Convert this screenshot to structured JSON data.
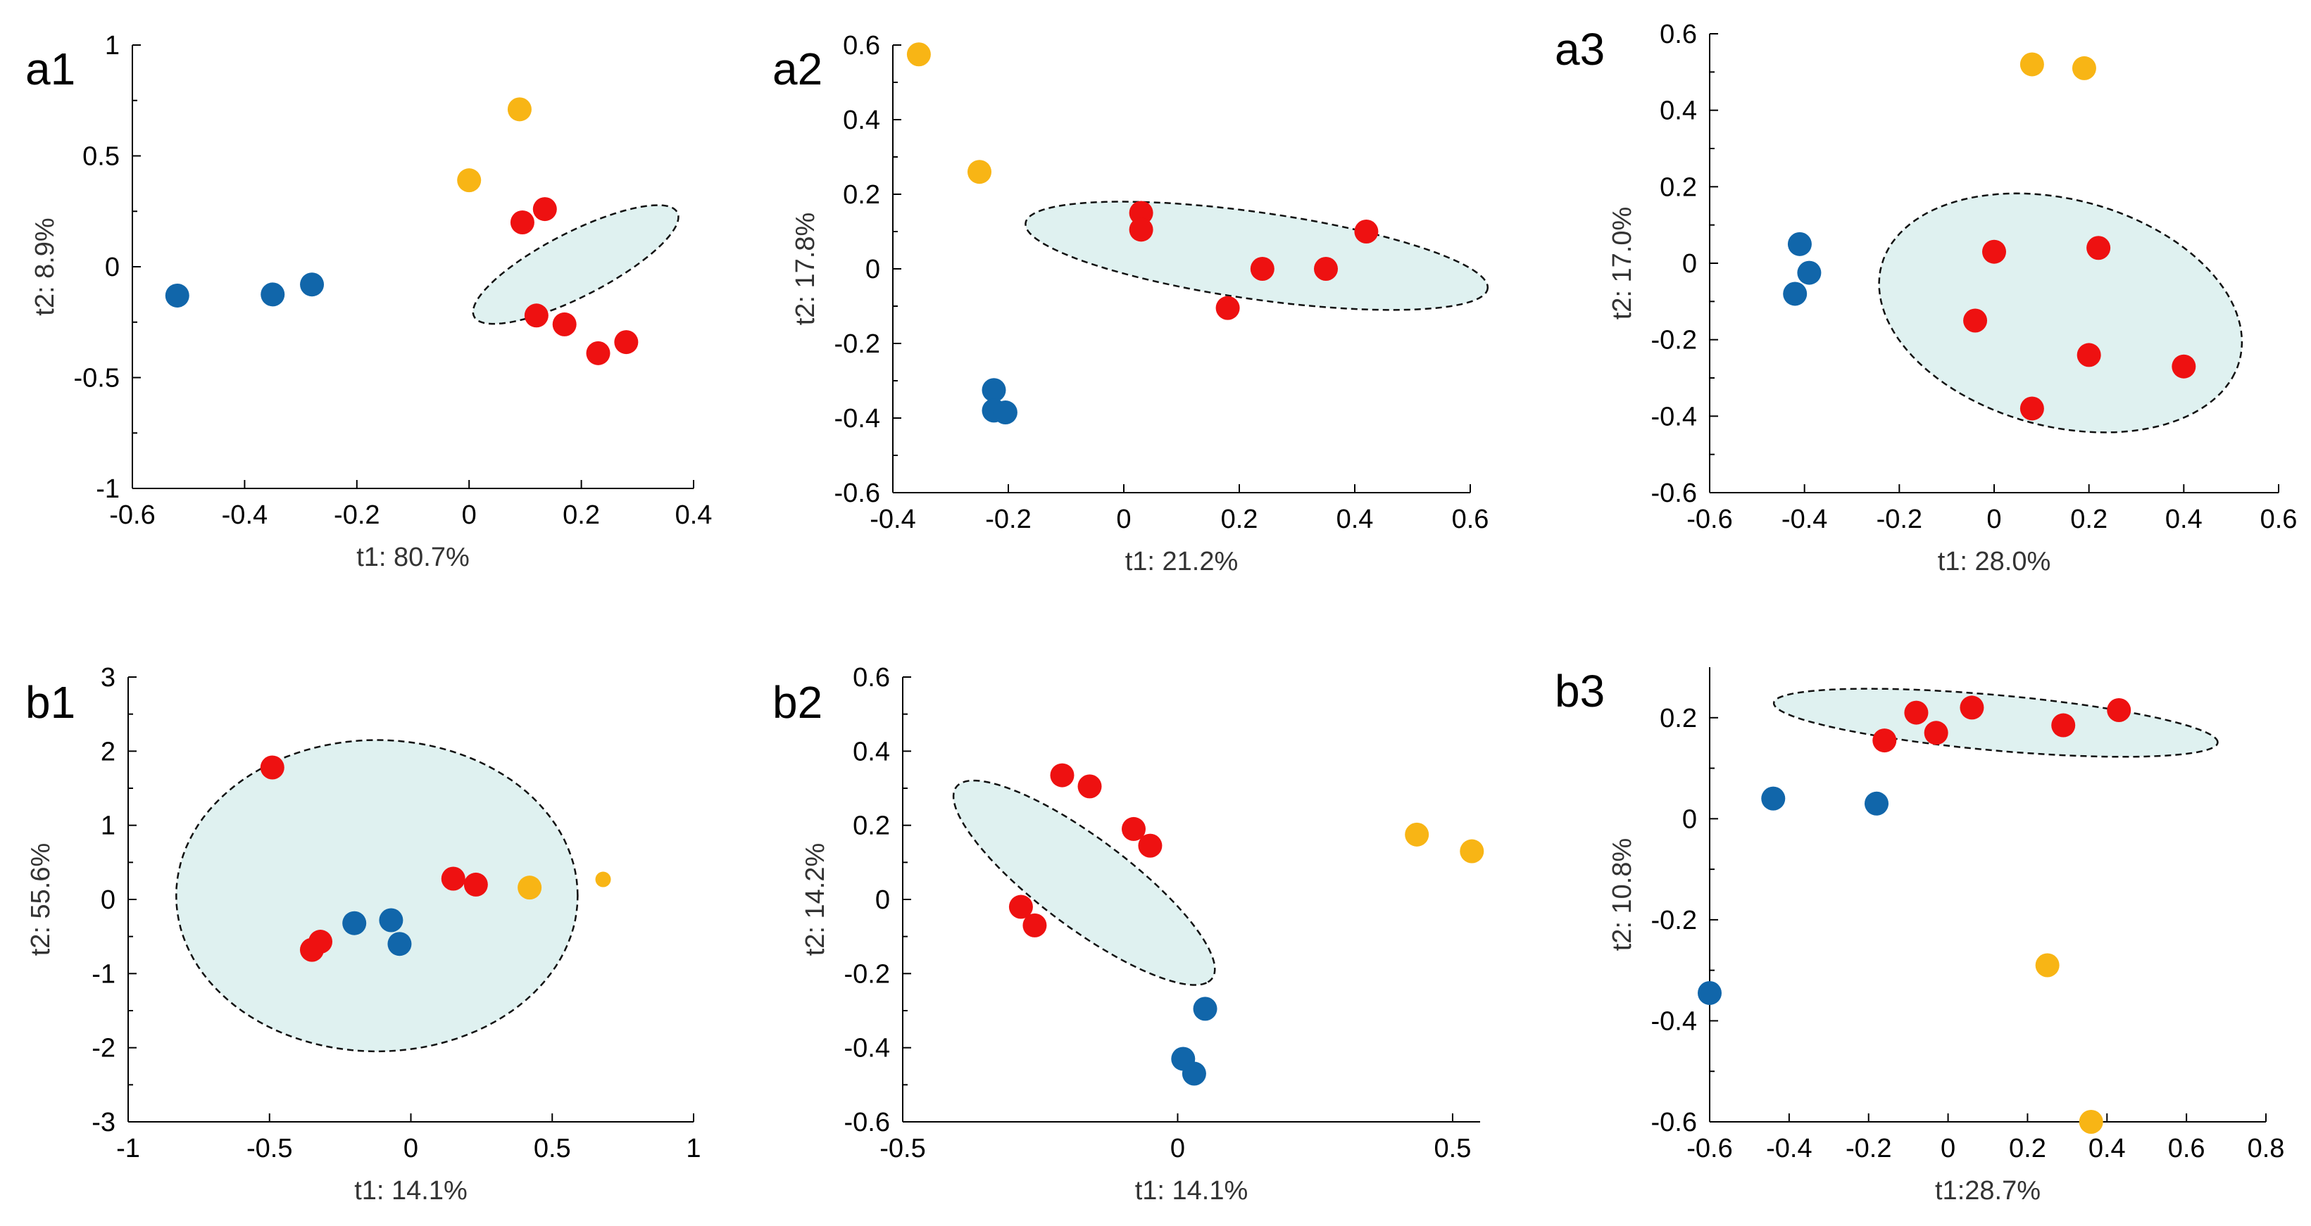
{
  "colors": {
    "red": "#ee1111",
    "blue": "#1166aa",
    "orange": "#f8b515",
    "ellipse_fill": "#dff1f0"
  },
  "chart_data": [
    {
      "id": "a1",
      "type": "scatter",
      "label": "a1",
      "xlabel": "t1: 80.7%",
      "ylabel": "t2: 8.9%",
      "xlim": [
        -0.6,
        0.4
      ],
      "ylim": [
        -1,
        1
      ],
      "xticks": [
        -0.6,
        -0.4,
        -0.2,
        0,
        0.2,
        0.4
      ],
      "xtick_labels": [
        "-0.6",
        "-0.4",
        "-0.2",
        "0",
        "0.2",
        "0.4"
      ],
      "yticks": [
        -1,
        -0.5,
        0,
        0.5,
        1
      ],
      "ytick_labels": [
        "-1",
        "-0.5",
        "0",
        "0.5",
        "1"
      ],
      "ellipse": {
        "cx": 0.19,
        "cy": 0.01,
        "rx": 0.31,
        "ry": 0.095,
        "angle_deg": 58
      },
      "series": [
        {
          "name": "red",
          "color": "#ee1111",
          "points": [
            [
              0.095,
              0.2
            ],
            [
              0.135,
              0.26
            ],
            [
              0.12,
              -0.22
            ],
            [
              0.17,
              -0.26
            ],
            [
              0.23,
              -0.39
            ],
            [
              0.28,
              -0.34
            ]
          ]
        },
        {
          "name": "blue",
          "color": "#1166aa",
          "points": [
            [
              -0.52,
              -0.13
            ],
            [
              -0.35,
              -0.125
            ],
            [
              -0.28,
              -0.08
            ]
          ]
        },
        {
          "name": "orange",
          "color": "#f8b515",
          "points": [
            [
              0.09,
              0.71
            ],
            [
              0.0,
              0.39
            ]
          ]
        }
      ]
    },
    {
      "id": "a2",
      "type": "scatter",
      "label": "a2",
      "xlabel": "t1: 21.2%",
      "ylabel": "t2: 17.8%",
      "xlim": [
        -0.4,
        0.6
      ],
      "ylim": [
        -0.6,
        0.6
      ],
      "xticks": [
        -0.4,
        -0.2,
        0,
        0.2,
        0.4,
        0.6
      ],
      "xtick_labels": [
        "-0.4",
        "-0.2",
        "0",
        "0.2",
        "0.4",
        "0.6"
      ],
      "yticks": [
        -0.6,
        -0.4,
        -0.2,
        0,
        0.2,
        0.4,
        0.6
      ],
      "ytick_labels": [
        "-0.6",
        "-0.4",
        "-0.2",
        "0",
        "0.2",
        "0.4",
        "0.6"
      ],
      "ellipse": {
        "cx": 0.23,
        "cy": 0.035,
        "rx": 0.41,
        "ry": 0.115,
        "angle_deg": -13
      },
      "series": [
        {
          "name": "red",
          "color": "#ee1111",
          "points": [
            [
              0.03,
              0.15
            ],
            [
              0.03,
              0.105
            ],
            [
              0.24,
              0.0
            ],
            [
              0.35,
              0.0
            ],
            [
              0.42,
              0.1
            ],
            [
              0.18,
              -0.105
            ]
          ]
        },
        {
          "name": "blue",
          "color": "#1166aa",
          "points": [
            [
              -0.225,
              -0.325
            ],
            [
              -0.225,
              -0.38
            ],
            [
              -0.205,
              -0.385
            ]
          ]
        },
        {
          "name": "orange",
          "color": "#f8b515",
          "points": [
            [
              -0.355,
              0.575
            ],
            [
              -0.25,
              0.26
            ]
          ]
        }
      ]
    },
    {
      "id": "a3",
      "type": "scatter",
      "label": "a3",
      "xlabel": "t1: 28.0%",
      "ylabel": "t2: 17.0%",
      "xlim": [
        -0.6,
        0.6
      ],
      "ylim": [
        -0.6,
        0.6
      ],
      "xticks": [
        -0.6,
        -0.4,
        -0.2,
        0,
        0.2,
        0.4,
        0.6
      ],
      "xtick_labels": [
        "-0.6",
        "-0.4",
        "-0.2",
        "0",
        "0.2",
        "0.4",
        "0.6"
      ],
      "yticks": [
        -0.6,
        -0.4,
        -0.2,
        0,
        0.2,
        0.4,
        0.6
      ],
      "ytick_labels": [
        "-0.6",
        "-0.4",
        "-0.2",
        "0",
        "0.2",
        "0.4",
        "0.6"
      ],
      "ellipse": {
        "cx": 0.14,
        "cy": -0.13,
        "rx": 0.4,
        "ry": 0.29,
        "angle_deg": -25
      },
      "series": [
        {
          "name": "red",
          "color": "#ee1111",
          "points": [
            [
              0.0,
              0.03
            ],
            [
              0.22,
              0.04
            ],
            [
              -0.04,
              -0.15
            ],
            [
              0.2,
              -0.24
            ],
            [
              0.4,
              -0.27
            ],
            [
              0.08,
              -0.38
            ]
          ]
        },
        {
          "name": "blue",
          "color": "#1166aa",
          "points": [
            [
              -0.41,
              0.05
            ],
            [
              -0.39,
              -0.025
            ],
            [
              -0.42,
              -0.08
            ]
          ]
        },
        {
          "name": "orange",
          "color": "#f8b515",
          "points": [
            [
              0.08,
              0.52
            ],
            [
              0.19,
              0.51
            ]
          ]
        }
      ]
    },
    {
      "id": "b1",
      "type": "scatter",
      "label": "b1",
      "xlabel": "t1: 14.1%",
      "ylabel": "t2: 55.6%",
      "xlim": [
        -1,
        1
      ],
      "ylim": [
        -3,
        3
      ],
      "xticks": [
        -1,
        -0.5,
        0,
        0.5,
        1
      ],
      "xtick_labels": [
        "-1",
        "-0.5",
        "0",
        "0.5",
        "1"
      ],
      "yticks": [
        -3,
        -2,
        -1,
        0,
        1,
        2,
        3
      ],
      "ytick_labels": [
        "-3",
        "-2",
        "-1",
        "0",
        "1",
        "2",
        "3"
      ],
      "ellipse": {
        "cx": -0.12,
        "cy": 0.05,
        "rx": 0.71,
        "ry": 2.1,
        "angle_deg": 0
      },
      "series": [
        {
          "name": "red",
          "color": "#ee1111",
          "points": [
            [
              -0.49,
              1.78
            ],
            [
              0.15,
              0.28
            ],
            [
              0.23,
              0.2
            ],
            [
              -0.32,
              -0.57
            ],
            [
              -0.35,
              -0.68
            ]
          ]
        },
        {
          "name": "blue",
          "color": "#1166aa",
          "points": [
            [
              -0.2,
              -0.32
            ],
            [
              -0.07,
              -0.28
            ],
            [
              -0.04,
              -0.6
            ]
          ]
        },
        {
          "name": "orange",
          "color": "#f8b515",
          "points": [
            [
              0.42,
              0.16
            ]
          ]
        },
        {
          "name": "orange-small",
          "color": "#f8b515",
          "small": true,
          "points": [
            [
              0.68,
              0.27
            ]
          ]
        }
      ]
    },
    {
      "id": "b2",
      "type": "scatter",
      "label": "b2",
      "xlabel": "t1: 14.1%",
      "ylabel": "t2: 14.2%",
      "xlim": [
        -0.5,
        0.55
      ],
      "ylim": [
        -0.6,
        0.6
      ],
      "xticks": [
        -0.5,
        0,
        0.5
      ],
      "xtick_labels": [
        "-0.5",
        "0",
        "0.5"
      ],
      "yticks": [
        -0.6,
        -0.4,
        -0.2,
        0,
        0.2,
        0.4,
        0.6
      ],
      "ytick_labels": [
        "-0.6",
        "-0.4",
        "-0.2",
        "0",
        "0.2",
        "0.4",
        "0.6"
      ],
      "ellipse": {
        "cx": -0.17,
        "cy": 0.045,
        "rx": 0.35,
        "ry": 0.1,
        "angle_deg": -50
      },
      "series": [
        {
          "name": "red",
          "color": "#ee1111",
          "points": [
            [
              -0.21,
              0.335
            ],
            [
              -0.16,
              0.305
            ],
            [
              -0.08,
              0.19
            ],
            [
              -0.05,
              0.145
            ],
            [
              -0.285,
              -0.02
            ],
            [
              -0.26,
              -0.07
            ]
          ]
        },
        {
          "name": "blue",
          "color": "#1166aa",
          "points": [
            [
              0.05,
              -0.295
            ],
            [
              0.01,
              -0.43
            ],
            [
              0.03,
              -0.47
            ]
          ]
        },
        {
          "name": "orange",
          "color": "#f8b515",
          "points": [
            [
              0.435,
              0.175
            ],
            [
              0.535,
              0.13
            ]
          ]
        }
      ]
    },
    {
      "id": "b3",
      "type": "scatter",
      "label": "b3",
      "xlabel": "t1:28.7%",
      "ylabel": "t2: 10.8%",
      "xlim": [
        -0.6,
        0.8
      ],
      "ylim": [
        -0.6,
        0.3
      ],
      "xticks": [
        -0.6,
        -0.4,
        -0.2,
        0,
        0.2,
        0.4,
        0.6,
        0.8
      ],
      "xtick_labels": [
        "-0.6",
        "-0.4",
        "-0.2",
        "0",
        "0.2",
        "0.4",
        "0.6",
        "0.8"
      ],
      "yticks": [
        -0.6,
        -0.4,
        -0.2,
        0,
        0.2
      ],
      "ytick_labels": [
        "-0.6",
        "-0.4",
        "-0.2",
        "0",
        "0.2"
      ],
      "ellipse": {
        "cx": 0.12,
        "cy": 0.19,
        "rx": 0.56,
        "ry": 0.055,
        "angle_deg": -4
      },
      "series": [
        {
          "name": "red",
          "color": "#ee1111",
          "points": [
            [
              -0.16,
              0.155
            ],
            [
              -0.08,
              0.21
            ],
            [
              -0.03,
              0.17
            ],
            [
              0.06,
              0.22
            ],
            [
              0.29,
              0.185
            ],
            [
              0.43,
              0.215
            ]
          ]
        },
        {
          "name": "blue",
          "color": "#1166aa",
          "points": [
            [
              -0.44,
              0.04
            ],
            [
              -0.18,
              0.03
            ],
            [
              -0.6,
              -0.345
            ]
          ]
        },
        {
          "name": "orange",
          "color": "#f8b515",
          "points": [
            [
              0.25,
              -0.29
            ],
            [
              0.36,
              -0.6
            ]
          ]
        }
      ]
    }
  ]
}
